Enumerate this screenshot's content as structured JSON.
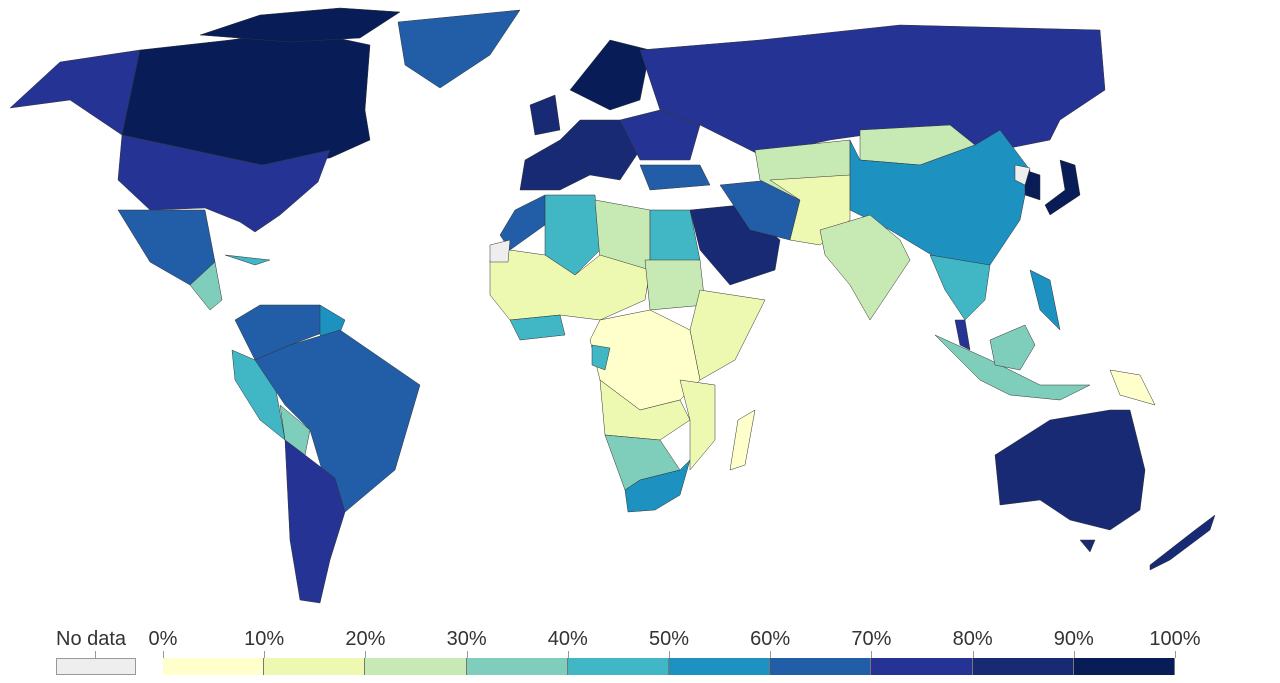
{
  "legend": {
    "no_data_label": "No data",
    "no_data_color": "#eeeeee",
    "ticks": [
      "0%",
      "10%",
      "20%",
      "30%",
      "40%",
      "50%",
      "60%",
      "70%",
      "80%",
      "90%",
      "100%"
    ],
    "colors": [
      "#ffffcc",
      "#edf8b1",
      "#c7e9b4",
      "#7fcdbb",
      "#41b6c4",
      "#1d91c0",
      "#225ea8",
      "#253494",
      "#172a73",
      "#081d58"
    ]
  }
}
